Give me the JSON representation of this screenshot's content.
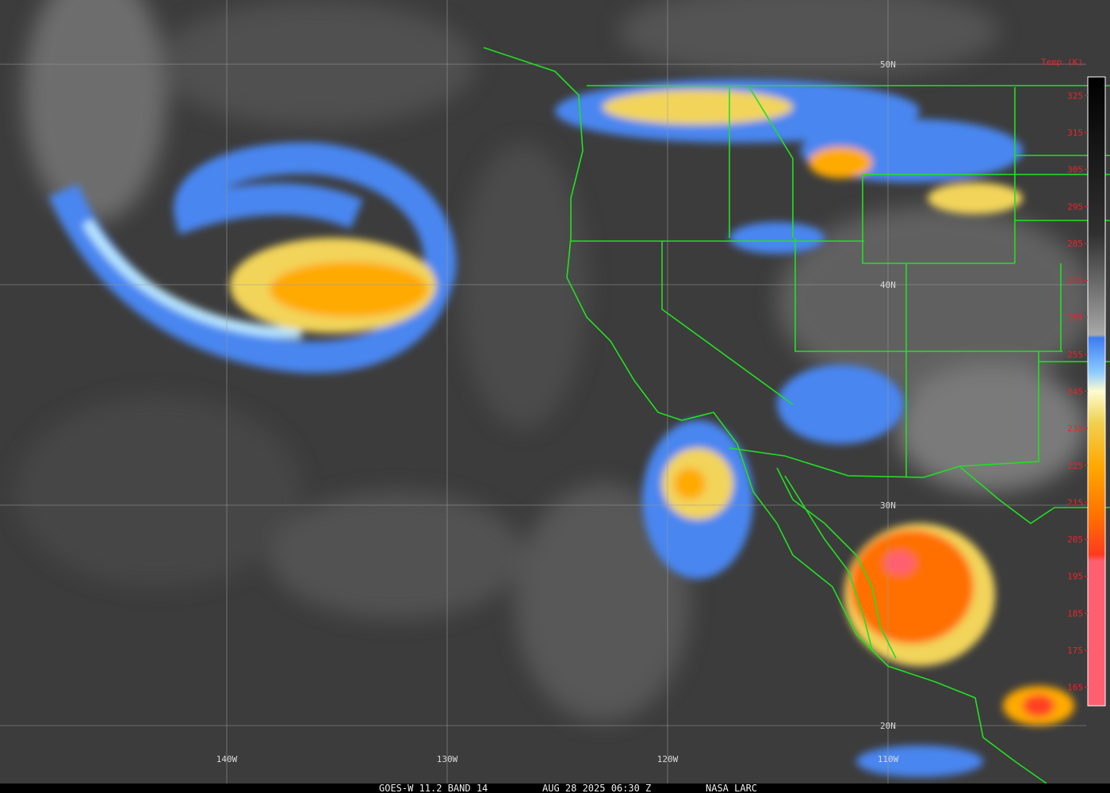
{
  "map": {
    "latitude_labels": [
      "50N",
      "40N",
      "30N",
      "20N"
    ],
    "longitude_labels": [
      "140W",
      "130W",
      "120W",
      "110W"
    ],
    "colorbar": {
      "title": "Temp (K)",
      "range": [
        160,
        330
      ],
      "ticks": [
        325,
        315,
        305,
        295,
        285,
        275,
        265,
        255,
        245,
        235,
        225,
        215,
        205,
        195,
        185,
        175,
        165
      ]
    },
    "caption": [
      "GOES-W 11.2 BAND 14",
      "AUG 28 2025 06:30 Z",
      "NASA LARC"
    ]
  }
}
